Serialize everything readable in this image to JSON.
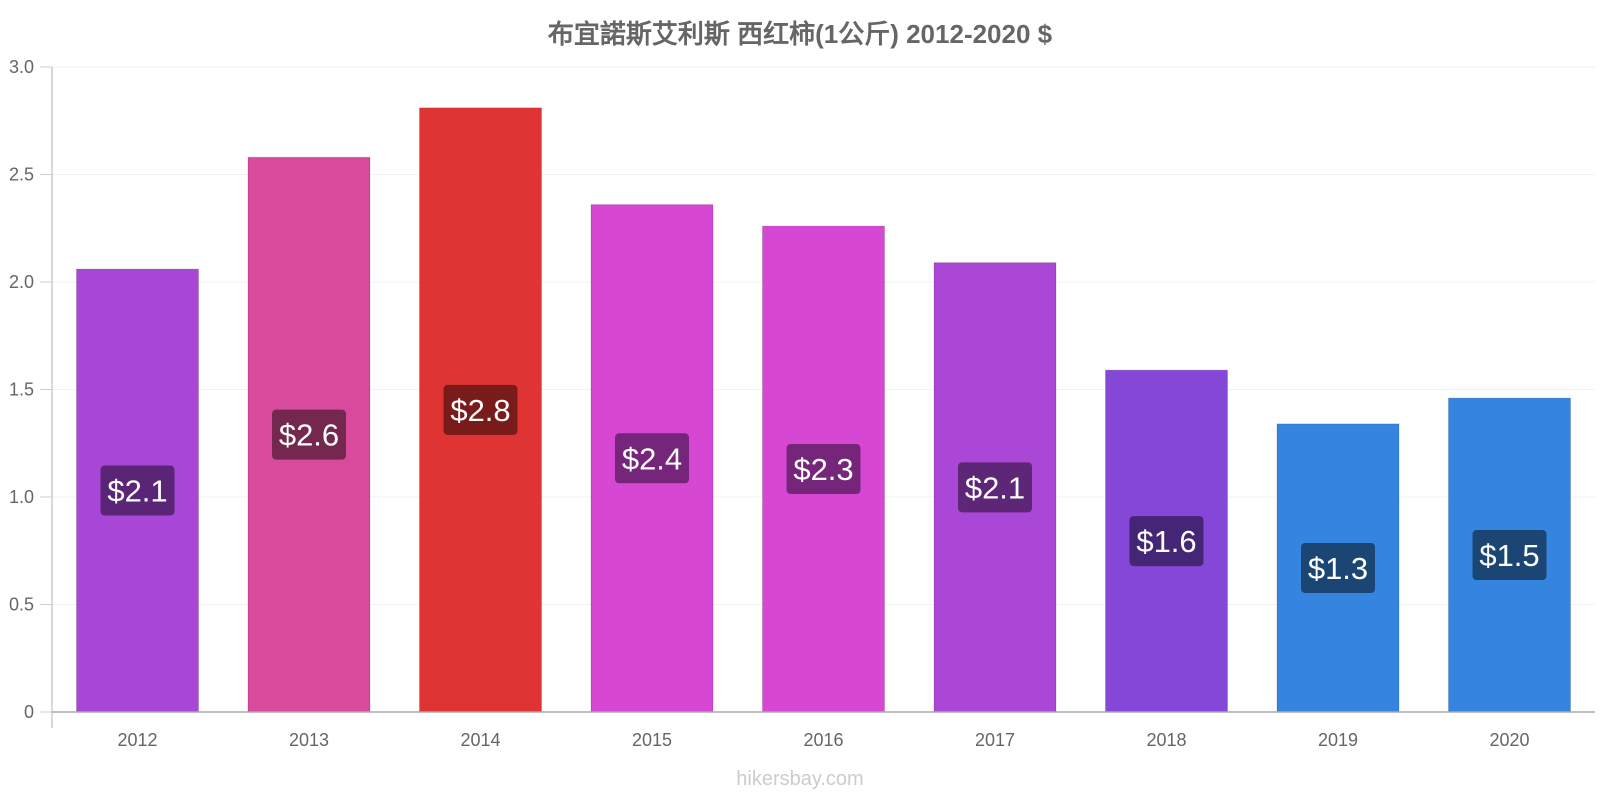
{
  "chart_data": {
    "type": "bar",
    "title": "布宜諾斯艾利斯 西红柿(1公斤) 2012-2020 $",
    "categories": [
      "2012",
      "2013",
      "2014",
      "2015",
      "2016",
      "2017",
      "2018",
      "2019",
      "2020"
    ],
    "values": [
      2.06,
      2.58,
      2.81,
      2.36,
      2.26,
      2.09,
      1.59,
      1.34,
      1.46
    ],
    "data_labels": [
      "$2.1",
      "$2.6",
      "$2.8",
      "$2.4",
      "$2.3",
      "$2.1",
      "$1.6",
      "$1.3",
      "$1.5"
    ],
    "bar_colors": [
      "#a847d7",
      "#d84a9c",
      "#e03434",
      "#d648d4",
      "#d648d4",
      "#aa47d6",
      "#8447d8",
      "#3584df",
      "#3584df"
    ],
    "label_bg_colors": [
      "#5a2576",
      "#75284f",
      "#7a1b1b",
      "#75267a",
      "#75267a",
      "#5d2676",
      "#452576",
      "#1b4673",
      "#1b4673"
    ],
    "yticks": [
      "0",
      "0.5",
      "1.0",
      "1.5",
      "2.0",
      "2.5",
      "3.0"
    ],
    "ylim": [
      0,
      3.0
    ],
    "xlabel": "",
    "ylabel": "",
    "grid": true,
    "legend": "none"
  },
  "watermark": "hikersbay.com"
}
